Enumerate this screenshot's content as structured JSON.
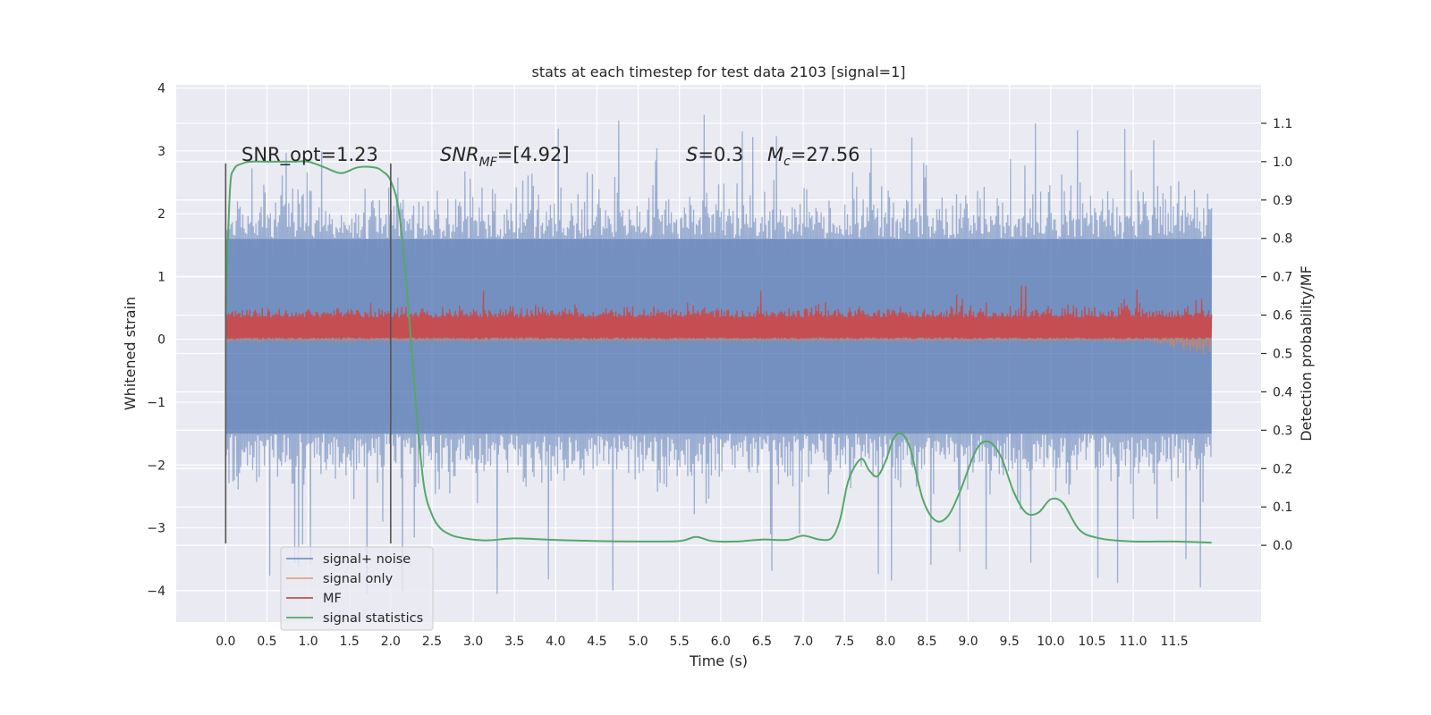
{
  "chart_data": {
    "type": "line",
    "title": "stats at each timestep for test data 2103 [signal=1]",
    "xlabel": "Time (s)",
    "ylabel": "Whitened strain",
    "ylabel_right": "Detection probability/MF",
    "xlim": [
      -0.6,
      12.55
    ],
    "ylim": [
      -4.5,
      4.05
    ],
    "ylim_right": [
      -0.2,
      1.2
    ],
    "x_ticks": [
      0.0,
      0.5,
      1.0,
      1.5,
      2.0,
      2.5,
      3.0,
      3.5,
      4.0,
      4.5,
      5.0,
      5.5,
      6.0,
      6.5,
      7.0,
      7.5,
      8.0,
      8.5,
      9.0,
      9.5,
      10.0,
      10.5,
      11.0,
      11.5
    ],
    "x_tick_labels": [
      "0.0",
      "0.5",
      "1.0",
      "1.5",
      "2.0",
      "2.5",
      "3.0",
      "3.5",
      "4.0",
      "4.5",
      "5.0",
      "5.5",
      "6.0",
      "6.5",
      "7.0",
      "7.5",
      "8.0",
      "8.5",
      "9.0",
      "9.5",
      "10.0",
      "10.5",
      "11.0",
      "11.5"
    ],
    "y_ticks": [
      -4,
      -3,
      -2,
      -1,
      0,
      1,
      2,
      3,
      4
    ],
    "y_tick_labels": [
      "−4",
      "−3",
      "−2",
      "−1",
      "0",
      "1",
      "2",
      "3",
      "4"
    ],
    "y_right_ticks": [
      0.0,
      0.1,
      0.2,
      0.3,
      0.4,
      0.5,
      0.6,
      0.7,
      0.8,
      0.9,
      1.0,
      1.1
    ],
    "y_right_tick_labels": [
      "0.0",
      "0.1",
      "0.2",
      "0.3",
      "0.4",
      "0.5",
      "0.6",
      "0.7",
      "0.8",
      "0.9",
      "1.0",
      "1.1"
    ],
    "grid": true,
    "legend_position": "lower-left",
    "annotations": {
      "snr_opt": "SNR_opt=1.23",
      "snr_mf_main": "SNR",
      "snr_mf_sub": "MF",
      "snr_mf_rest": "=[4.92]",
      "s_main": "S",
      "s_rest": "=0.3",
      "mc_main": "M",
      "mc_sub": "c",
      "mc_rest": "=27.56"
    },
    "vertical_lines": [
      {
        "x": 0.0,
        "y0": -3.25,
        "y1": 2.8
      },
      {
        "x": 2.0,
        "y0": -3.25,
        "y1": 2.8
      }
    ],
    "series": [
      {
        "name": "signal+ noise",
        "color": "#4c72b0",
        "alpha": 0.5,
        "x_range": [
          0.0,
          11.95
        ],
        "band": [
          -1.5,
          1.6
        ],
        "spike_max": 3.6,
        "spike_min": -4.1
      },
      {
        "name": "signal only",
        "color": "#dd8452",
        "alpha": 0.5,
        "x_range": [
          0.0,
          11.95
        ],
        "y": [
          0.0
        ]
      },
      {
        "name": "MF",
        "color": "#c44e52",
        "x_range": [
          0.0,
          11.95
        ],
        "band": [
          0.0,
          0.35
        ],
        "spike_max": 1.0
      },
      {
        "name": "signal statistics",
        "color": "#55a868",
        "axis": "right",
        "x": [
          0.0,
          0.05,
          0.1,
          0.2,
          0.3,
          0.5,
          0.8,
          1.0,
          1.2,
          1.4,
          1.6,
          1.8,
          1.9,
          2.0,
          2.1,
          2.2,
          2.3,
          2.4,
          2.5,
          2.6,
          2.7,
          2.8,
          3.0,
          3.2,
          3.5,
          4.0,
          4.5,
          5.0,
          5.5,
          5.7,
          5.9,
          6.2,
          6.5,
          6.8,
          7.0,
          7.2,
          7.35,
          7.45,
          7.55,
          7.7,
          7.8,
          7.9,
          8.0,
          8.1,
          8.2,
          8.3,
          8.45,
          8.6,
          8.75,
          8.9,
          9.1,
          9.25,
          9.4,
          9.55,
          9.7,
          9.85,
          10.0,
          10.15,
          10.35,
          10.6,
          11.0,
          11.5,
          11.95
        ],
        "y": [
          0.6,
          0.92,
          0.98,
          0.995,
          1.0,
          1.0,
          1.0,
          1.0,
          0.985,
          0.97,
          0.985,
          0.985,
          0.975,
          0.95,
          0.87,
          0.66,
          0.38,
          0.16,
          0.08,
          0.045,
          0.03,
          0.022,
          0.015,
          0.013,
          0.018,
          0.014,
          0.011,
          0.01,
          0.011,
          0.022,
          0.011,
          0.01,
          0.015,
          0.014,
          0.025,
          0.015,
          0.02,
          0.07,
          0.17,
          0.225,
          0.195,
          0.18,
          0.22,
          0.28,
          0.29,
          0.25,
          0.12,
          0.065,
          0.075,
          0.14,
          0.25,
          0.27,
          0.23,
          0.14,
          0.085,
          0.085,
          0.12,
          0.11,
          0.04,
          0.018,
          0.01,
          0.01,
          0.007
        ]
      }
    ]
  }
}
